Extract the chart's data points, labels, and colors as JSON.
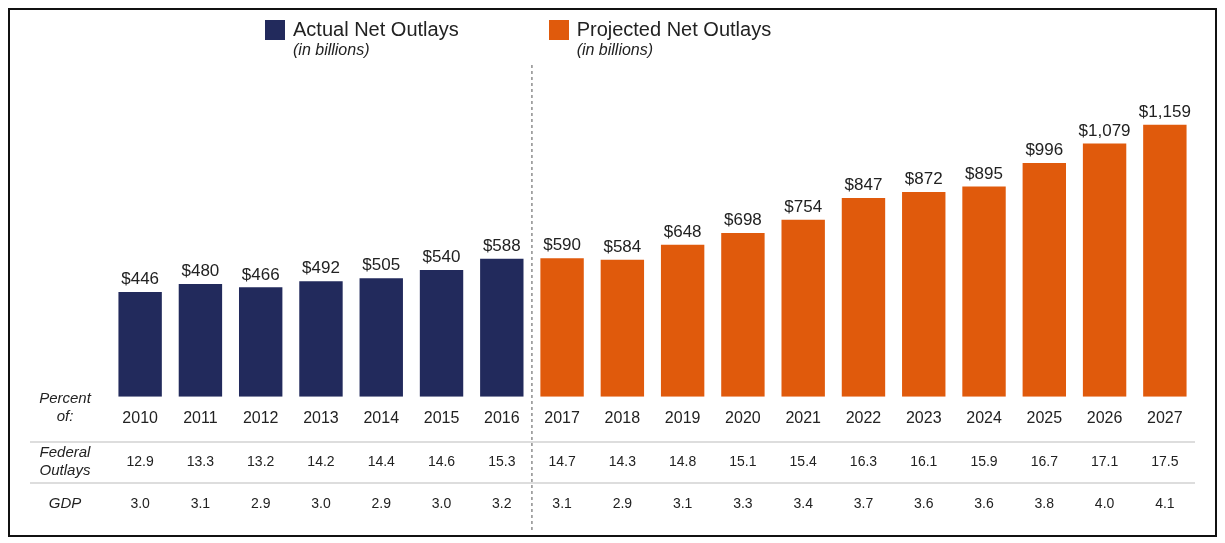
{
  "chart_data": {
    "type": "bar",
    "categories": [
      "2010",
      "2011",
      "2012",
      "2013",
      "2014",
      "2015",
      "2016",
      "2017",
      "2018",
      "2019",
      "2020",
      "2021",
      "2022",
      "2023",
      "2024",
      "2025",
      "2026",
      "2027"
    ],
    "series": [
      {
        "name": "Actual Net Outlays",
        "color": "#222a5c",
        "values": [
          446,
          480,
          466,
          492,
          505,
          540,
          588,
          null,
          null,
          null,
          null,
          null,
          null,
          null,
          null,
          null,
          null,
          null
        ],
        "value_labels": [
          "$446",
          "$480",
          "$466",
          "$492",
          "$505",
          "$540",
          "$588",
          null,
          null,
          null,
          null,
          null,
          null,
          null,
          null,
          null,
          null,
          null
        ]
      },
      {
        "name": "Projected Net Outlays",
        "color": "#e05a0c",
        "values": [
          null,
          null,
          null,
          null,
          null,
          null,
          null,
          590,
          584,
          648,
          698,
          754,
          847,
          872,
          895,
          996,
          1079,
          1159
        ],
        "value_labels": [
          null,
          null,
          null,
          null,
          null,
          null,
          null,
          "$590",
          "$584",
          "$648",
          "$698",
          "$754",
          "$847",
          "$872",
          "$895",
          "$996",
          "$1,079",
          "$1,159"
        ]
      }
    ],
    "annotations": [
      "(in billions)",
      "(in billions)",
      "Percent of:",
      "Federal Outlays",
      "GDP",
      "12.9",
      "13.3",
      "13.2",
      "14.2",
      "14.4",
      "14.6",
      "15.3",
      "14.7",
      "14.3",
      "14.8",
      "15.1",
      "15.4",
      "16.3",
      "16.1",
      "15.9",
      "16.7",
      "17.1",
      "17.5",
      "3.0",
      "3.1",
      "2.9",
      "3.0",
      "2.9",
      "3.0",
      "3.2",
      "3.1",
      "2.9",
      "3.1",
      "3.3",
      "3.4",
      "3.7",
      "3.6",
      "3.6",
      "3.8",
      "4.0",
      "4.1"
    ],
    "legend": "top",
    "grid": false,
    "tick_labels": "x"
  }
}
